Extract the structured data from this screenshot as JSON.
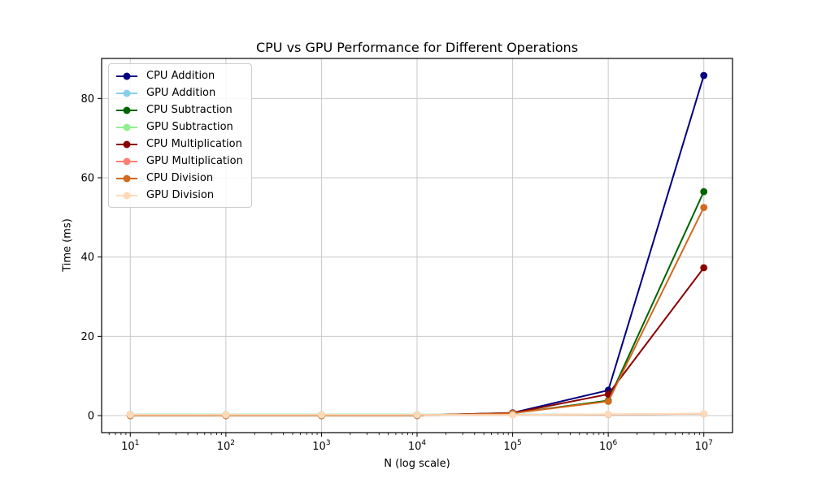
{
  "chart_data": {
    "type": "line",
    "title": "CPU vs GPU Performance for Different Operations",
    "xlabel": "N (log scale)",
    "ylabel": "Time (ms)",
    "xscale": "log",
    "x": [
      10,
      100,
      1000,
      10000,
      100000,
      1000000,
      10000000
    ],
    "xtick_exponents": [
      1,
      2,
      3,
      4,
      5,
      6,
      7
    ],
    "yticks": [
      0,
      20,
      40,
      60,
      80
    ],
    "xlim_log": [
      0.7,
      7.3
    ],
    "ylim": [
      -4.29,
      90.1
    ],
    "grid": true,
    "grid_color": "#c9c9c9",
    "axis_color": "#000000",
    "legend_position": "upper left",
    "legend_border_color": "#cccccc",
    "series": [
      {
        "name": "CPU Addition",
        "color": "#000080",
        "values": [
          0.02,
          0.02,
          0.03,
          0.06,
          0.7,
          6.4,
          85.8
        ]
      },
      {
        "name": "GPU Addition",
        "color": "#87CEEB",
        "values": [
          0.3,
          0.25,
          0.25,
          0.25,
          0.25,
          0.3,
          0.45
        ]
      },
      {
        "name": "CPU Subtraction",
        "color": "#006400",
        "values": [
          0.02,
          0.02,
          0.03,
          0.05,
          0.6,
          3.8,
          56.5
        ]
      },
      {
        "name": "GPU Subtraction",
        "color": "#90EE90",
        "values": [
          0.25,
          0.25,
          0.25,
          0.25,
          0.2,
          0.3,
          0.45
        ]
      },
      {
        "name": "CPU Multiplication",
        "color": "#8B0000",
        "values": [
          0.02,
          0.02,
          0.03,
          0.05,
          0.65,
          5.4,
          37.3
        ]
      },
      {
        "name": "GPU Multiplication",
        "color": "#FA8072",
        "values": [
          0.2,
          0.2,
          0.2,
          0.2,
          0.2,
          0.3,
          0.45
        ]
      },
      {
        "name": "CPU Division",
        "color": "#D2691E",
        "values": [
          0.02,
          0.02,
          0.03,
          0.05,
          0.6,
          3.6,
          52.5
        ]
      },
      {
        "name": "GPU Division",
        "color": "#FFDAB9",
        "values": [
          0.2,
          0.2,
          0.2,
          0.2,
          0.15,
          0.35,
          0.5
        ]
      }
    ]
  }
}
